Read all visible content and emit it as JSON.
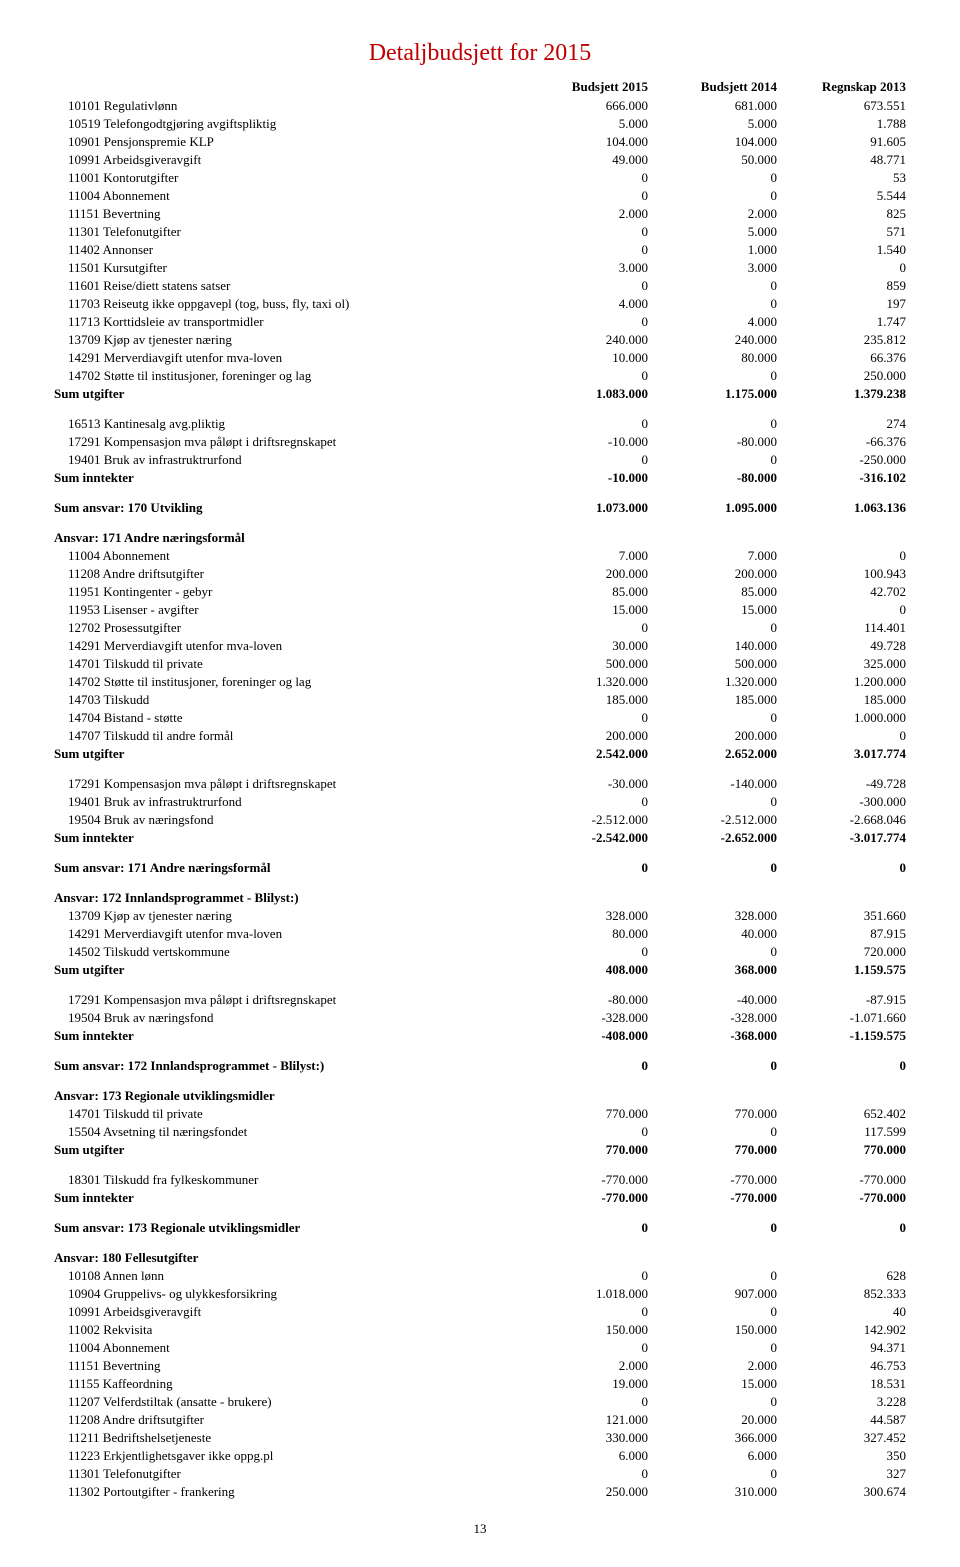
{
  "title": "Detaljbudsjett for 2015",
  "page_number": "13",
  "columns": [
    "Budsjett 2015",
    "Budsjett 2014",
    "Regnskap 2013"
  ],
  "colors": {
    "title": "#c00000",
    "text": "#000000",
    "background": "#ffffff"
  },
  "sections": [
    {
      "rows": [
        {
          "label": "10101 Regulativlønn",
          "v": [
            "666.000",
            "681.000",
            "673.551"
          ]
        },
        {
          "label": "10519 Telefongodtgjøring avgiftspliktig",
          "v": [
            "5.000",
            "5.000",
            "1.788"
          ]
        },
        {
          "label": "10901 Pensjonspremie KLP",
          "v": [
            "104.000",
            "104.000",
            "91.605"
          ]
        },
        {
          "label": "10991 Arbeidsgiveravgift",
          "v": [
            "49.000",
            "50.000",
            "48.771"
          ]
        },
        {
          "label": "11001 Kontorutgifter",
          "v": [
            "0",
            "0",
            "53"
          ]
        },
        {
          "label": "11004 Abonnement",
          "v": [
            "0",
            "0",
            "5.544"
          ]
        },
        {
          "label": "11151 Bevertning",
          "v": [
            "2.000",
            "2.000",
            "825"
          ]
        },
        {
          "label": "11301 Telefonutgifter",
          "v": [
            "0",
            "5.000",
            "571"
          ]
        },
        {
          "label": "11402 Annonser",
          "v": [
            "0",
            "1.000",
            "1.540"
          ]
        },
        {
          "label": "11501 Kursutgifter",
          "v": [
            "3.000",
            "3.000",
            "0"
          ]
        },
        {
          "label": "11601 Reise/diett statens satser",
          "v": [
            "0",
            "0",
            "859"
          ]
        },
        {
          "label": "11703 Reiseutg ikke oppgavepl (tog, buss, fly, taxi   ol)",
          "v": [
            "4.000",
            "0",
            "197"
          ]
        },
        {
          "label": "11713 Korttidsleie av transportmidler",
          "v": [
            "0",
            "4.000",
            "1.747"
          ]
        },
        {
          "label": "13709 Kjøp av tjenester næring",
          "v": [
            "240.000",
            "240.000",
            "235.812"
          ]
        },
        {
          "label": "14291 Merverdiavgift utenfor mva-loven",
          "v": [
            "10.000",
            "80.000",
            "66.376"
          ]
        },
        {
          "label": "14702 Støtte til institusjoner, foreninger og lag",
          "v": [
            "0",
            "0",
            "250.000"
          ]
        },
        {
          "label": "Sum utgifter",
          "v": [
            "1.083.000",
            "1.175.000",
            "1.379.238"
          ],
          "bold": true
        }
      ]
    },
    {
      "rows": [
        {
          "label": "16513 Kantinesalg avg.pliktig",
          "v": [
            "0",
            "0",
            "274"
          ]
        },
        {
          "label": "17291 Kompensasjon mva påløpt i driftsregnskapet",
          "v": [
            "-10.000",
            "-80.000",
            "-66.376"
          ]
        },
        {
          "label": "19401 Bruk av infrastruktrurfond",
          "v": [
            "0",
            "0",
            "-250.000"
          ]
        },
        {
          "label": "Sum inntekter",
          "v": [
            "-10.000",
            "-80.000",
            "-316.102"
          ],
          "bold": true
        }
      ]
    },
    {
      "rows": [
        {
          "label": "Sum ansvar: 170 Utvikling",
          "v": [
            "1.073.000",
            "1.095.000",
            "1.063.136"
          ],
          "bold": true
        }
      ]
    },
    {
      "heading": "Ansvar: 171 Andre næringsformål",
      "rows": [
        {
          "label": "11004 Abonnement",
          "v": [
            "7.000",
            "7.000",
            "0"
          ]
        },
        {
          "label": "11208 Andre driftsutgifter",
          "v": [
            "200.000",
            "200.000",
            "100.943"
          ]
        },
        {
          "label": "11951 Kontingenter - gebyr",
          "v": [
            "85.000",
            "85.000",
            "42.702"
          ]
        },
        {
          "label": "11953 Lisenser - avgifter",
          "v": [
            "15.000",
            "15.000",
            "0"
          ]
        },
        {
          "label": "12702 Prosessutgifter",
          "v": [
            "0",
            "0",
            "114.401"
          ]
        },
        {
          "label": "14291 Merverdiavgift utenfor mva-loven",
          "v": [
            "30.000",
            "140.000",
            "49.728"
          ]
        },
        {
          "label": "14701 Tilskudd til private",
          "v": [
            "500.000",
            "500.000",
            "325.000"
          ]
        },
        {
          "label": "14702 Støtte til institusjoner, foreninger og lag",
          "v": [
            "1.320.000",
            "1.320.000",
            "1.200.000"
          ]
        },
        {
          "label": "14703 Tilskudd",
          "v": [
            "185.000",
            "185.000",
            "185.000"
          ]
        },
        {
          "label": "14704 Bistand - støtte",
          "v": [
            "0",
            "0",
            "1.000.000"
          ]
        },
        {
          "label": "14707 Tilskudd til andre formål",
          "v": [
            "200.000",
            "200.000",
            "0"
          ]
        },
        {
          "label": "Sum utgifter",
          "v": [
            "2.542.000",
            "2.652.000",
            "3.017.774"
          ],
          "bold": true
        }
      ]
    },
    {
      "rows": [
        {
          "label": "17291 Kompensasjon mva påløpt i driftsregnskapet",
          "v": [
            "-30.000",
            "-140.000",
            "-49.728"
          ]
        },
        {
          "label": "19401 Bruk av infrastruktrurfond",
          "v": [
            "0",
            "0",
            "-300.000"
          ]
        },
        {
          "label": "19504 Bruk av næringsfond",
          "v": [
            "-2.512.000",
            "-2.512.000",
            "-2.668.046"
          ]
        },
        {
          "label": "Sum inntekter",
          "v": [
            "-2.542.000",
            "-2.652.000",
            "-3.017.774"
          ],
          "bold": true
        }
      ]
    },
    {
      "rows": [
        {
          "label": "Sum ansvar: 171 Andre næringsformål",
          "v": [
            "0",
            "0",
            "0"
          ],
          "bold": true
        }
      ]
    },
    {
      "heading": "Ansvar: 172 Innlandsprogrammet - Blilyst:)",
      "rows": [
        {
          "label": "13709 Kjøp av tjenester næring",
          "v": [
            "328.000",
            "328.000",
            "351.660"
          ]
        },
        {
          "label": "14291 Merverdiavgift utenfor mva-loven",
          "v": [
            "80.000",
            "40.000",
            "87.915"
          ]
        },
        {
          "label": "14502 Tilskudd vertskommune",
          "v": [
            "0",
            "0",
            "720.000"
          ]
        },
        {
          "label": "Sum utgifter",
          "v": [
            "408.000",
            "368.000",
            "1.159.575"
          ],
          "bold": true
        }
      ]
    },
    {
      "rows": [
        {
          "label": "17291 Kompensasjon mva påløpt i driftsregnskapet",
          "v": [
            "-80.000",
            "-40.000",
            "-87.915"
          ]
        },
        {
          "label": "19504 Bruk av næringsfond",
          "v": [
            "-328.000",
            "-328.000",
            "-1.071.660"
          ]
        },
        {
          "label": "Sum inntekter",
          "v": [
            "-408.000",
            "-368.000",
            "-1.159.575"
          ],
          "bold": true
        }
      ]
    },
    {
      "rows": [
        {
          "label": "Sum ansvar: 172 Innlandsprogrammet - Blilyst:)",
          "v": [
            "0",
            "0",
            "0"
          ],
          "bold": true
        }
      ]
    },
    {
      "heading": "Ansvar: 173 Regionale utviklingsmidler",
      "rows": [
        {
          "label": "14701 Tilskudd til private",
          "v": [
            "770.000",
            "770.000",
            "652.402"
          ]
        },
        {
          "label": "15504 Avsetning til næringsfondet",
          "v": [
            "0",
            "0",
            "117.599"
          ]
        },
        {
          "label": "Sum utgifter",
          "v": [
            "770.000",
            "770.000",
            "770.000"
          ],
          "bold": true
        }
      ]
    },
    {
      "rows": [
        {
          "label": "18301 Tilskudd fra fylkeskommuner",
          "v": [
            "-770.000",
            "-770.000",
            "-770.000"
          ]
        },
        {
          "label": "Sum inntekter",
          "v": [
            "-770.000",
            "-770.000",
            "-770.000"
          ],
          "bold": true
        }
      ]
    },
    {
      "rows": [
        {
          "label": "Sum ansvar: 173 Regionale utviklingsmidler",
          "v": [
            "0",
            "0",
            "0"
          ],
          "bold": true
        }
      ]
    },
    {
      "heading": "Ansvar: 180 Fellesutgifter",
      "rows": [
        {
          "label": "10108 Annen lønn",
          "v": [
            "0",
            "0",
            "628"
          ]
        },
        {
          "label": "10904 Gruppelivs- og ulykkesforsikring",
          "v": [
            "1.018.000",
            "907.000",
            "852.333"
          ]
        },
        {
          "label": "10991 Arbeidsgiveravgift",
          "v": [
            "0",
            "0",
            "40"
          ]
        },
        {
          "label": "11002 Rekvisita",
          "v": [
            "150.000",
            "150.000",
            "142.902"
          ]
        },
        {
          "label": "11004 Abonnement",
          "v": [
            "0",
            "0",
            "94.371"
          ]
        },
        {
          "label": "11151 Bevertning",
          "v": [
            "2.000",
            "2.000",
            "46.753"
          ]
        },
        {
          "label": "11155 Kaffeordning",
          "v": [
            "19.000",
            "15.000",
            "18.531"
          ]
        },
        {
          "label": "11207 Velferdstiltak (ansatte - brukere)",
          "v": [
            "0",
            "0",
            "3.228"
          ]
        },
        {
          "label": "11208 Andre driftsutgifter",
          "v": [
            "121.000",
            "20.000",
            "44.587"
          ]
        },
        {
          "label": "11211 Bedriftshelsetjeneste",
          "v": [
            "330.000",
            "366.000",
            "327.452"
          ]
        },
        {
          "label": "11223 Erkjentlighetsgaver ikke oppg.pl",
          "v": [
            "6.000",
            "6.000",
            "350"
          ]
        },
        {
          "label": "11301 Telefonutgifter",
          "v": [
            "0",
            "0",
            "327"
          ]
        },
        {
          "label": "11302 Portoutgifter - frankering",
          "v": [
            "250.000",
            "310.000",
            "300.674"
          ]
        }
      ]
    }
  ]
}
